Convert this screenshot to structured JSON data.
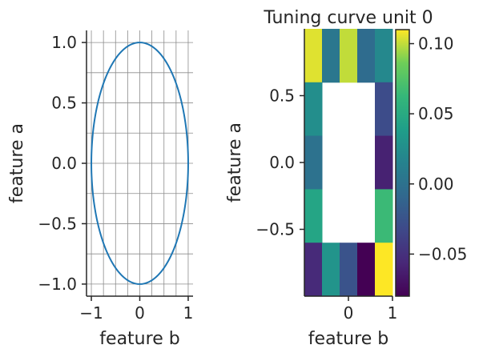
{
  "chart_data": [
    {
      "type": "line",
      "title": "",
      "xlabel": "feature b",
      "ylabel": "feature a",
      "xlim": [
        -1.1,
        1.1
      ],
      "ylim": [
        -1.1,
        1.1
      ],
      "xticks": [
        -1,
        0,
        1
      ],
      "xtick_labels": [
        "−1",
        "0",
        "1"
      ],
      "yticks": [
        -1.0,
        -0.5,
        0.0,
        0.5,
        1.0
      ],
      "ytick_labels": [
        "−1.0",
        "−0.5",
        "0.0",
        "0.5",
        "1.0"
      ],
      "grid": true,
      "series": [
        {
          "shape": "circle",
          "center": [
            0,
            0
          ],
          "radius": 1,
          "color": "#1f77b4"
        }
      ]
    },
    {
      "type": "heatmap",
      "title": "Tuning curve unit 0",
      "xlabel": "feature b",
      "ylabel": "feature a",
      "colormap": "viridis",
      "x_edges": [
        -1.0,
        -0.6,
        -0.2,
        0.2,
        0.6,
        1.0
      ],
      "y_edges": [
        -1.0,
        -0.6,
        -0.2,
        0.2,
        0.6,
        1.0
      ],
      "xticks": [
        0,
        1
      ],
      "xtick_labels": [
        "0",
        "1"
      ],
      "yticks": [
        -0.5,
        0.0,
        0.5
      ],
      "ytick_labels": [
        "−0.5",
        "0.0",
        "0.5"
      ],
      "rows_top_to_bottom": [
        [
          0.105,
          0.005,
          0.1,
          -0.005,
          0.02
        ],
        [
          0.025,
          null,
          null,
          null,
          -0.03
        ],
        [
          0.0,
          null,
          null,
          null,
          -0.06
        ],
        [
          0.045,
          null,
          null,
          null,
          0.065
        ],
        [
          -0.055,
          0.03,
          -0.025,
          -0.085,
          0.11
        ]
      ],
      "colorbar": {
        "vmin": -0.08,
        "vmax": 0.11,
        "ticks": [
          -0.05,
          0.0,
          0.05,
          0.1
        ],
        "tick_labels": [
          "−0.05",
          "0.00",
          "0.05",
          "0.10"
        ]
      }
    }
  ]
}
